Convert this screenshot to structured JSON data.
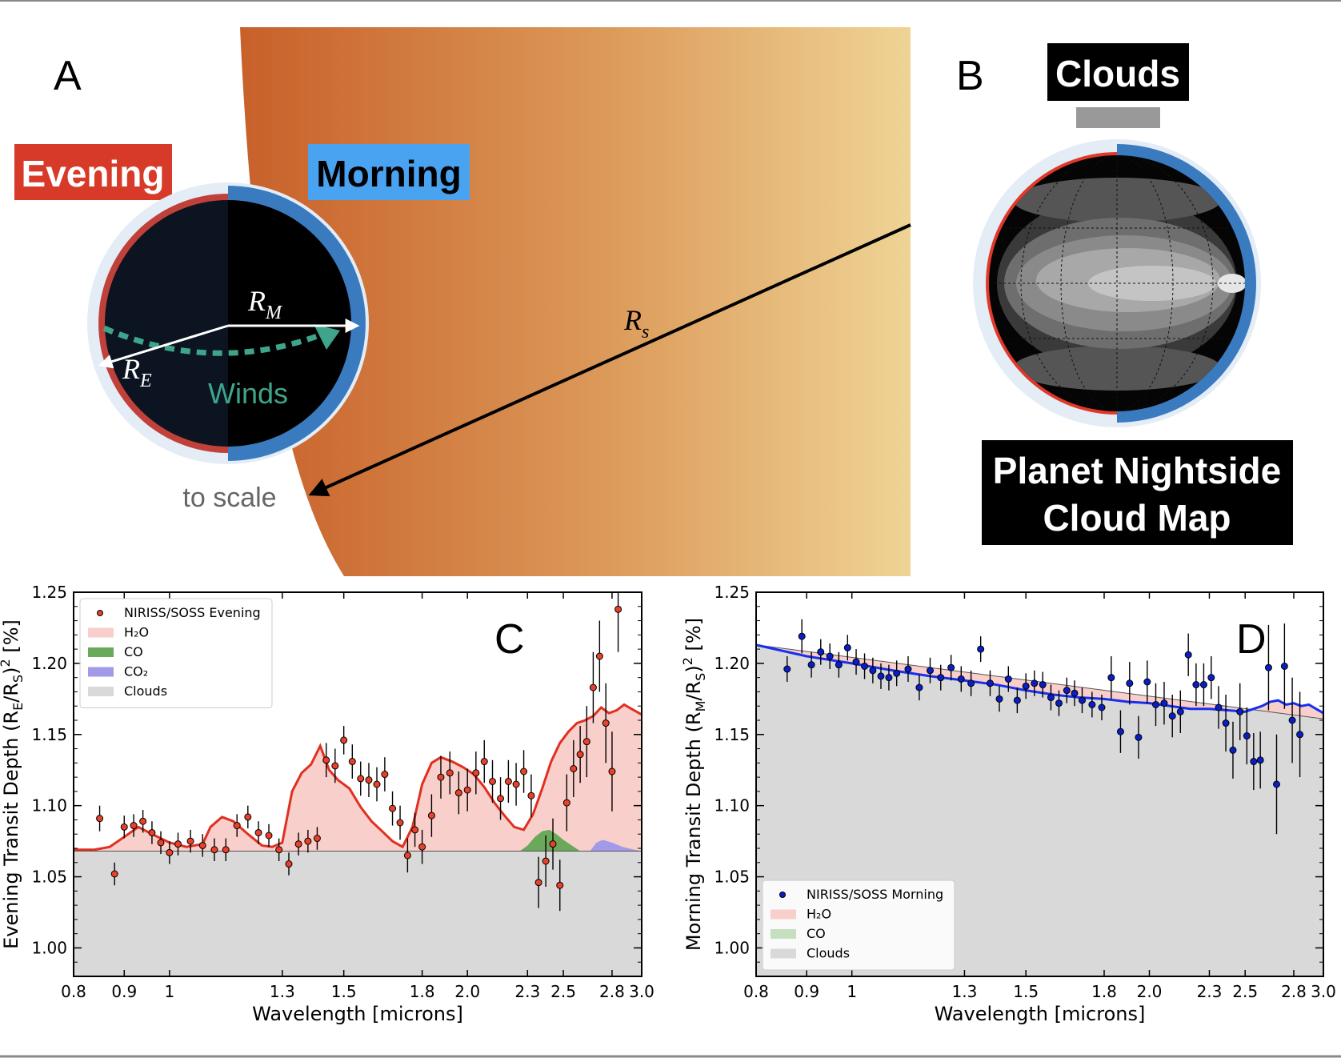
{
  "panel_a": {
    "letter": "A",
    "evening_label": "Evening",
    "morning_label": "Morning",
    "rm_base": "R",
    "rm_sub": "M",
    "re_base": "R",
    "re_sub": "E",
    "rs_base": "R",
    "rs_sub": "s",
    "winds_label": "Winds",
    "scale_note": "to scale",
    "colors": {
      "evening": "#d94a2f",
      "morning": "#3a7bc0",
      "winds": "#3ea58c",
      "star_dark": "#c8602a",
      "star_light": "#eecf8f"
    }
  },
  "panel_b": {
    "letter": "B",
    "clouds_label": "Clouds",
    "map_title_line1": "Planet Nightside",
    "map_title_line2": "Cloud Map"
  },
  "chart_data": [
    {
      "type": "scatter",
      "panel": "C",
      "xlabel": "Wavelength [microns]",
      "ylabel_prefix": "Evening Transit Depth (R",
      "ylabel_sub1": "E",
      "ylabel_mid": "/R",
      "ylabel_sub2": "S",
      "ylabel_suffix": ")",
      "ylabel_sup": "2",
      "ylabel_unit": " [%]",
      "xscale": "log",
      "xlim": [
        0.8,
        3.0
      ],
      "ylim": [
        0.98,
        1.25
      ],
      "xticks": [
        0.8,
        0.9,
        1,
        1.3,
        1.5,
        1.8,
        2.0,
        2.3,
        2.5,
        2.8,
        3.0
      ],
      "xtick_labels": [
        "0.8",
        "0.9",
        "1",
        "1.3",
        "1.5",
        "1.8",
        "2.0",
        "2.3",
        "2.5",
        "2.8",
        "3.0"
      ],
      "yticks": [
        1.0,
        1.05,
        1.1,
        1.15,
        1.2,
        1.25
      ],
      "ytick_labels": [
        "1.00",
        "1.05",
        "1.10",
        "1.15",
        "1.20",
        "1.25"
      ],
      "legend": [
        {
          "label": "NIRISS/SOSS Evening",
          "kind": "marker"
        },
        {
          "label": "H₂O",
          "kind": "patch"
        },
        {
          "label": "CO",
          "kind": "patch"
        },
        {
          "label": "CO₂",
          "kind": "patch"
        },
        {
          "label": "Clouds",
          "kind": "patch"
        }
      ],
      "legend_position": "upper-left",
      "cloud_level": 1.068,
      "colors": {
        "data": "#e8402a",
        "model": "#e03020",
        "h2o": "#f8cfca",
        "co": "#6aa85a",
        "co2": "#a29ae8",
        "clouds": "#d9d9d9"
      },
      "model": {
        "x": [
          0.8,
          0.84,
          0.87,
          0.9,
          0.93,
          0.96,
          1.0,
          1.04,
          1.08,
          1.1,
          1.13,
          1.16,
          1.2,
          1.24,
          1.27,
          1.3,
          1.33,
          1.36,
          1.39,
          1.42,
          1.45,
          1.48,
          1.52,
          1.56,
          1.6,
          1.64,
          1.68,
          1.72,
          1.76,
          1.8,
          1.84,
          1.88,
          1.93,
          1.98,
          2.03,
          2.08,
          2.13,
          2.18,
          2.23,
          2.28,
          2.33,
          2.38,
          2.43,
          2.48,
          2.53,
          2.58,
          2.63,
          2.68,
          2.73,
          2.78,
          2.83,
          2.88,
          2.93,
          3.0
        ],
        "y": [
          1.069,
          1.069,
          1.071,
          1.078,
          1.085,
          1.08,
          1.074,
          1.071,
          1.073,
          1.085,
          1.092,
          1.089,
          1.08,
          1.072,
          1.071,
          1.074,
          1.11,
          1.123,
          1.129,
          1.142,
          1.125,
          1.118,
          1.112,
          1.099,
          1.089,
          1.082,
          1.075,
          1.071,
          1.085,
          1.115,
          1.13,
          1.134,
          1.131,
          1.127,
          1.122,
          1.113,
          1.102,
          1.093,
          1.085,
          1.083,
          1.094,
          1.112,
          1.131,
          1.144,
          1.152,
          1.158,
          1.16,
          1.163,
          1.169,
          1.165,
          1.167,
          1.171,
          1.168,
          1.164
        ]
      },
      "co_feature": {
        "x": [
          2.26,
          2.3,
          2.34,
          2.38,
          2.42,
          2.46,
          2.5,
          2.55,
          2.6
        ],
        "y": [
          1.068,
          1.072,
          1.078,
          1.082,
          1.083,
          1.08,
          1.076,
          1.072,
          1.068
        ]
      },
      "co2_feature": {
        "x": [
          2.66,
          2.7,
          2.74,
          2.8,
          2.87,
          2.95,
          3.0
        ],
        "y": [
          1.068,
          1.074,
          1.076,
          1.074,
          1.071,
          1.069,
          1.068
        ]
      },
      "points": {
        "x": [
          0.85,
          0.88,
          0.9,
          0.92,
          0.94,
          0.96,
          0.98,
          1.0,
          1.02,
          1.05,
          1.08,
          1.11,
          1.14,
          1.17,
          1.2,
          1.23,
          1.26,
          1.29,
          1.32,
          1.35,
          1.38,
          1.41,
          1.44,
          1.47,
          1.5,
          1.53,
          1.56,
          1.59,
          1.62,
          1.65,
          1.68,
          1.71,
          1.74,
          1.77,
          1.8,
          1.84,
          1.88,
          1.92,
          1.96,
          2.0,
          2.04,
          2.08,
          2.12,
          2.16,
          2.2,
          2.24,
          2.28,
          2.32,
          2.36,
          2.4,
          2.44,
          2.48,
          2.52,
          2.56,
          2.6,
          2.64,
          2.68,
          2.72,
          2.76,
          2.8,
          2.84
        ],
        "y": [
          1.091,
          1.052,
          1.085,
          1.086,
          1.089,
          1.081,
          1.074,
          1.067,
          1.073,
          1.075,
          1.072,
          1.069,
          1.069,
          1.086,
          1.092,
          1.081,
          1.079,
          1.069,
          1.059,
          1.073,
          1.075,
          1.077,
          1.132,
          1.128,
          1.146,
          1.131,
          1.119,
          1.118,
          1.115,
          1.122,
          1.098,
          1.088,
          1.065,
          1.083,
          1.071,
          1.093,
          1.12,
          1.123,
          1.109,
          1.111,
          1.123,
          1.131,
          1.117,
          1.105,
          1.117,
          1.115,
          1.124,
          1.107,
          1.046,
          1.061,
          1.073,
          1.044,
          1.102,
          1.126,
          1.136,
          1.145,
          1.183,
          1.205,
          1.158,
          1.124,
          1.238
        ],
        "err": [
          0.009,
          0.008,
          0.008,
          0.008,
          0.008,
          0.008,
          0.008,
          0.008,
          0.008,
          0.008,
          0.008,
          0.008,
          0.008,
          0.008,
          0.008,
          0.008,
          0.008,
          0.008,
          0.008,
          0.008,
          0.008,
          0.008,
          0.012,
          0.012,
          0.01,
          0.012,
          0.012,
          0.012,
          0.012,
          0.012,
          0.012,
          0.012,
          0.012,
          0.012,
          0.012,
          0.015,
          0.015,
          0.015,
          0.015,
          0.015,
          0.015,
          0.015,
          0.015,
          0.015,
          0.015,
          0.015,
          0.015,
          0.015,
          0.018,
          0.018,
          0.018,
          0.018,
          0.02,
          0.02,
          0.02,
          0.025,
          0.025,
          0.025,
          0.028,
          0.028,
          0.03
        ]
      }
    },
    {
      "type": "scatter",
      "panel": "D",
      "xlabel": "Wavelength [microns]",
      "ylabel_prefix": "Morning Transit Depth (R",
      "ylabel_sub1": "M",
      "ylabel_mid": "/R",
      "ylabel_sub2": "S",
      "ylabel_suffix": ")",
      "ylabel_sup": "2",
      "ylabel_unit": " [%]",
      "xscale": "log",
      "xlim": [
        0.8,
        3.0
      ],
      "ylim": [
        0.98,
        1.25
      ],
      "xticks": [
        0.8,
        0.9,
        1,
        1.3,
        1.5,
        1.8,
        2.0,
        2.3,
        2.5,
        2.8,
        3.0
      ],
      "xtick_labels": [
        "0.8",
        "0.9",
        "1",
        "1.3",
        "1.5",
        "1.8",
        "2.0",
        "2.3",
        "2.5",
        "2.8",
        "3.0"
      ],
      "yticks": [
        1.0,
        1.05,
        1.1,
        1.15,
        1.2,
        1.25
      ],
      "ytick_labels": [
        "1.00",
        "1.05",
        "1.10",
        "1.15",
        "1.20",
        "1.25"
      ],
      "legend": [
        {
          "label": "NIRISS/SOSS Morning",
          "kind": "marker"
        },
        {
          "label": "H₂O",
          "kind": "patch"
        },
        {
          "label": "CO",
          "kind": "patch"
        },
        {
          "label": "Clouds",
          "kind": "patch"
        }
      ],
      "legend_position": "lower-left",
      "colors": {
        "data": "#0a1ec8",
        "model": "#1830ee",
        "h2o": "#f8cfca",
        "co": "#c5dfbf",
        "clouds": "#d9d9d9"
      },
      "cloud_line": {
        "x": [
          0.8,
          3.0
        ],
        "y": [
          1.213,
          1.161
        ]
      },
      "model": {
        "x": [
          0.8,
          0.9,
          1.0,
          1.1,
          1.2,
          1.3,
          1.4,
          1.5,
          1.6,
          1.7,
          1.8,
          1.9,
          2.0,
          2.1,
          2.2,
          2.3,
          2.4,
          2.5,
          2.6,
          2.65,
          2.7,
          2.75,
          2.8,
          2.85,
          2.9,
          2.95,
          3.0
        ],
        "y": [
          1.213,
          1.205,
          1.2,
          1.195,
          1.191,
          1.188,
          1.185,
          1.181,
          1.178,
          1.176,
          1.175,
          1.173,
          1.172,
          1.17,
          1.168,
          1.168,
          1.167,
          1.166,
          1.17,
          1.173,
          1.174,
          1.171,
          1.172,
          1.17,
          1.171,
          1.168,
          1.165
        ]
      },
      "points": {
        "x": [
          0.86,
          0.89,
          0.91,
          0.93,
          0.95,
          0.97,
          0.99,
          1.01,
          1.03,
          1.05,
          1.07,
          1.09,
          1.11,
          1.14,
          1.17,
          1.2,
          1.23,
          1.26,
          1.29,
          1.32,
          1.35,
          1.38,
          1.41,
          1.44,
          1.47,
          1.5,
          1.53,
          1.56,
          1.59,
          1.62,
          1.65,
          1.68,
          1.71,
          1.75,
          1.79,
          1.83,
          1.87,
          1.91,
          1.95,
          1.99,
          2.03,
          2.07,
          2.11,
          2.15,
          2.19,
          2.23,
          2.27,
          2.31,
          2.35,
          2.39,
          2.43,
          2.47,
          2.51,
          2.55,
          2.59,
          2.64,
          2.69,
          2.74,
          2.79,
          2.84
        ],
        "y": [
          1.196,
          1.219,
          1.199,
          1.208,
          1.205,
          1.199,
          1.211,
          1.201,
          1.198,
          1.195,
          1.191,
          1.19,
          1.193,
          1.196,
          1.183,
          1.195,
          1.19,
          1.197,
          1.189,
          1.186,
          1.21,
          1.186,
          1.175,
          1.189,
          1.174,
          1.184,
          1.186,
          1.185,
          1.176,
          1.172,
          1.181,
          1.179,
          1.174,
          1.171,
          1.169,
          1.19,
          1.152,
          1.186,
          1.148,
          1.187,
          1.171,
          1.172,
          1.163,
          1.166,
          1.206,
          1.185,
          1.185,
          1.19,
          1.169,
          1.158,
          1.139,
          1.166,
          1.149,
          1.131,
          1.132,
          1.197,
          1.115,
          1.198,
          1.16,
          1.15
        ],
        "err": [
          0.009,
          0.012,
          0.009,
          0.009,
          0.009,
          0.009,
          0.009,
          0.009,
          0.009,
          0.009,
          0.009,
          0.009,
          0.009,
          0.009,
          0.009,
          0.009,
          0.009,
          0.009,
          0.009,
          0.009,
          0.009,
          0.009,
          0.009,
          0.009,
          0.009,
          0.009,
          0.009,
          0.009,
          0.009,
          0.009,
          0.009,
          0.009,
          0.009,
          0.009,
          0.009,
          0.015,
          0.015,
          0.015,
          0.015,
          0.015,
          0.015,
          0.015,
          0.015,
          0.015,
          0.015,
          0.015,
          0.015,
          0.015,
          0.015,
          0.02,
          0.02,
          0.02,
          0.02,
          0.02,
          0.02,
          0.03,
          0.035,
          0.03,
          0.03,
          0.03
        ]
      }
    }
  ]
}
